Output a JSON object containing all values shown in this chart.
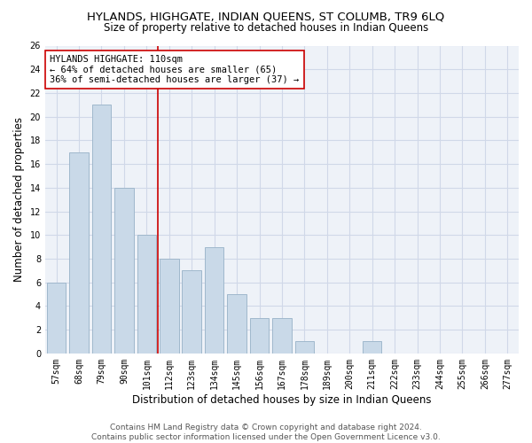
{
  "title": "HYLANDS, HIGHGATE, INDIAN QUEENS, ST COLUMB, TR9 6LQ",
  "subtitle": "Size of property relative to detached houses in Indian Queens",
  "xlabel": "Distribution of detached houses by size in Indian Queens",
  "ylabel": "Number of detached properties",
  "bar_labels": [
    "57sqm",
    "68sqm",
    "79sqm",
    "90sqm",
    "101sqm",
    "112sqm",
    "123sqm",
    "134sqm",
    "145sqm",
    "156sqm",
    "167sqm",
    "178sqm",
    "189sqm",
    "200sqm",
    "211sqm",
    "222sqm",
    "233sqm",
    "244sqm",
    "255sqm",
    "266sqm",
    "277sqm"
  ],
  "bar_values": [
    6,
    17,
    21,
    14,
    10,
    8,
    7,
    9,
    5,
    3,
    3,
    1,
    0,
    0,
    1,
    0,
    0,
    0,
    0,
    0,
    0
  ],
  "bar_color": "#c9d9e8",
  "bar_edgecolor": "#a0b8cc",
  "grid_color": "#d0d8e8",
  "bg_color": "#eef2f8",
  "vline_color": "#cc0000",
  "annotation_title": "HYLANDS HIGHGATE: 110sqm",
  "annotation_line1": "← 64% of detached houses are smaller (65)",
  "annotation_line2": "36% of semi-detached houses are larger (37) →",
  "annotation_box_color": "#ffffff",
  "annotation_box_edgecolor": "#cc0000",
  "ylim": [
    0,
    26
  ],
  "yticks": [
    0,
    2,
    4,
    6,
    8,
    10,
    12,
    14,
    16,
    18,
    20,
    22,
    24,
    26
  ],
  "footer_line1": "Contains HM Land Registry data © Crown copyright and database right 2024.",
  "footer_line2": "Contains public sector information licensed under the Open Government Licence v3.0.",
  "title_fontsize": 9.5,
  "subtitle_fontsize": 8.5,
  "xlabel_fontsize": 8.5,
  "ylabel_fontsize": 8.5,
  "tick_fontsize": 7,
  "annotation_fontsize": 7.5,
  "footer_fontsize": 6.5
}
